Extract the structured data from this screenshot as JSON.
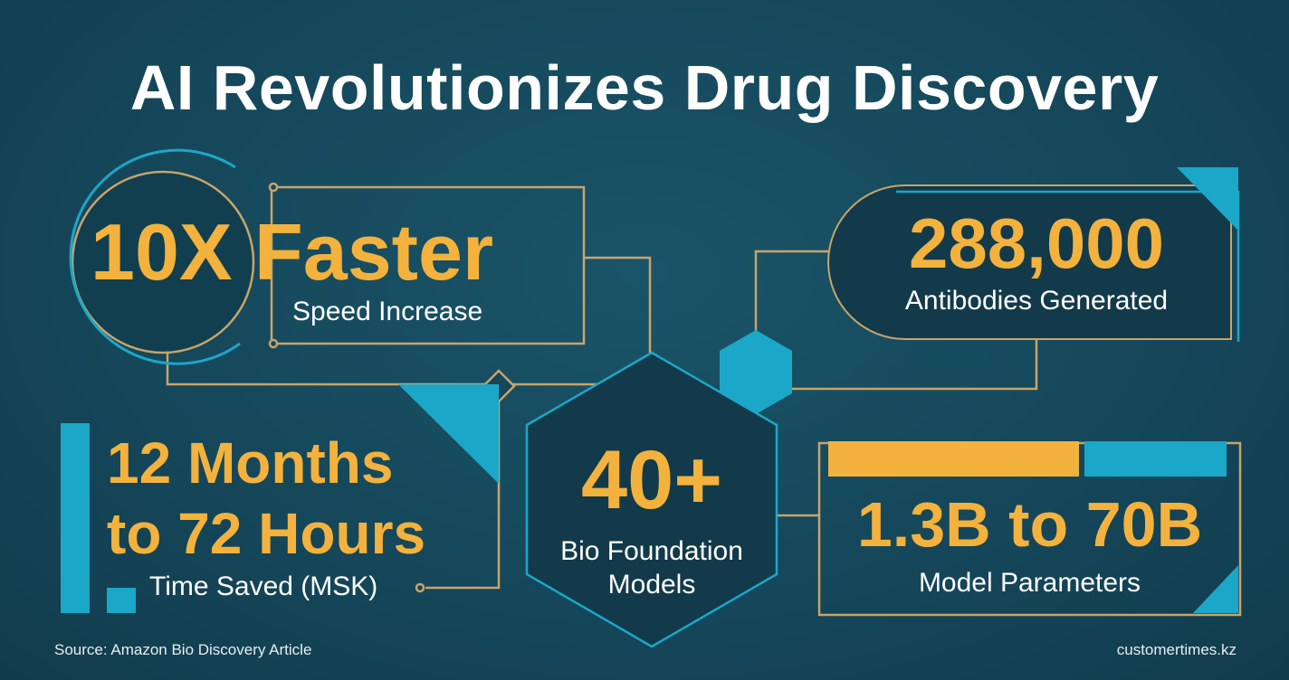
{
  "title": "AI Revolutionizes Drug Discovery",
  "stats": [
    {
      "value": "10X Faster",
      "label": "Speed Increase"
    },
    {
      "value": "288,000",
      "label": "Antibodies Generated"
    },
    {
      "value_lines": [
        "12 Months",
        "to 72 Hours"
      ],
      "label": "Time Saved (MSK)"
    },
    {
      "value": "40+",
      "label_lines": [
        "Bio Foundation",
        "Models"
      ]
    },
    {
      "value": "1.3B to 70B",
      "label": "Model Parameters"
    }
  ],
  "footer": {
    "source": "Source: Amazon Bio Discovery Article",
    "site": "customertimes.kz"
  }
}
